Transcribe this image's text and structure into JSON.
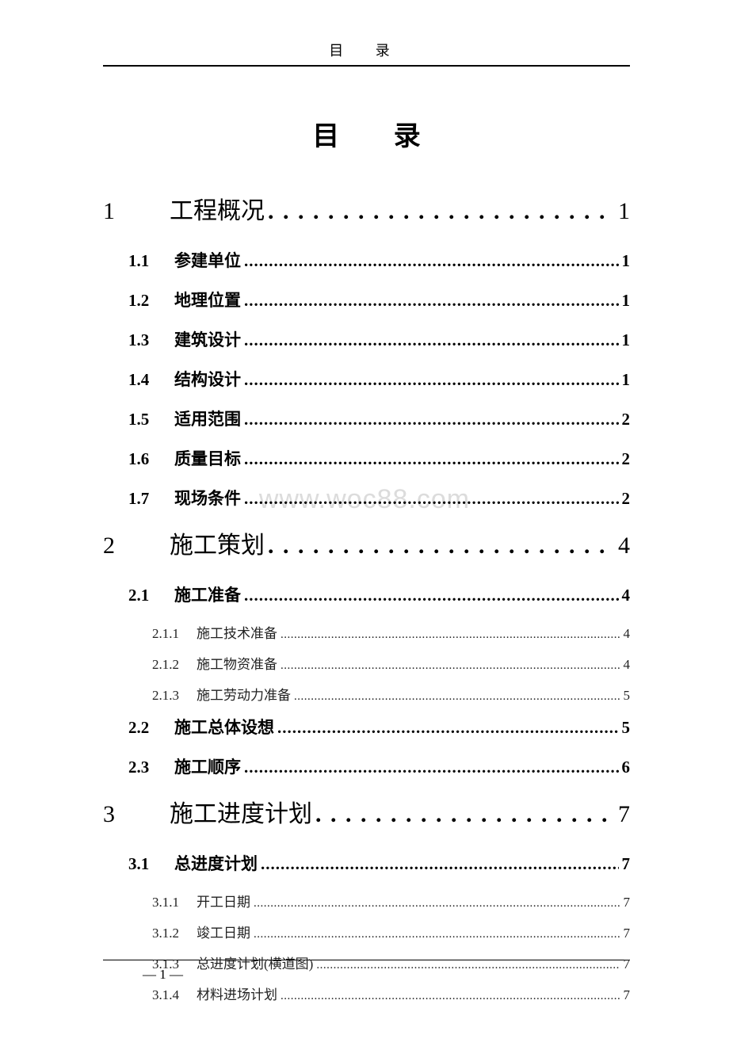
{
  "header": {
    "running_title": "目  录"
  },
  "title": "目  录",
  "watermark": "www.woc88.com",
  "page_number": "— 1 —",
  "colors": {
    "text": "#000000",
    "background": "#ffffff",
    "watermark": "#dcdcdc",
    "rule": "#000000"
  },
  "typography": {
    "body_font": "SimSun",
    "title_fontsize": 34,
    "level1_fontsize": 30,
    "level2_fontsize": 21,
    "level3_fontsize": 17,
    "header_fontsize": 18
  },
  "toc": [
    {
      "level": 1,
      "num": "1",
      "title": "工程概况",
      "page": "1"
    },
    {
      "level": 2,
      "num": "1.1",
      "title": "参建单位",
      "page": "1"
    },
    {
      "level": 2,
      "num": "1.2",
      "title": "地理位置",
      "page": "1"
    },
    {
      "level": 2,
      "num": "1.3",
      "title": "建筑设计",
      "page": "1"
    },
    {
      "level": 2,
      "num": "1.4",
      "title": "结构设计",
      "page": "1"
    },
    {
      "level": 2,
      "num": "1.5",
      "title": "适用范围",
      "page": "2"
    },
    {
      "level": 2,
      "num": "1.6",
      "title": "质量目标",
      "page": "2"
    },
    {
      "level": 2,
      "num": "1.7",
      "title": "现场条件",
      "page": "2"
    },
    {
      "level": 1,
      "num": "2",
      "title": "施工策划",
      "page": "4"
    },
    {
      "level": 2,
      "num": "2.1",
      "title": "施工准备",
      "page": "4"
    },
    {
      "level": 3,
      "num": "2.1.1",
      "title": "施工技术准备",
      "page": "4"
    },
    {
      "level": 3,
      "num": "2.1.2",
      "title": "施工物资准备",
      "page": "4"
    },
    {
      "level": 3,
      "num": "2.1.3",
      "title": "施工劳动力准备",
      "page": "5"
    },
    {
      "level": 2,
      "num": "2.2",
      "title": "施工总体设想",
      "page": "5"
    },
    {
      "level": 2,
      "num": "2.3",
      "title": "施工顺序",
      "page": "6"
    },
    {
      "level": 1,
      "num": "3",
      "title": "施工进度计划",
      "page": "7"
    },
    {
      "level": 2,
      "num": "3.1",
      "title": "总进度计划",
      "page": "7"
    },
    {
      "level": 3,
      "num": "3.1.1",
      "title": "开工日期",
      "page": "7"
    },
    {
      "level": 3,
      "num": "3.1.2",
      "title": "竣工日期",
      "page": "7"
    },
    {
      "level": 3,
      "num": "3.1.3",
      "title": "总进度计划(横道图)",
      "page": "7"
    },
    {
      "level": 3,
      "num": "3.1.4",
      "title": "材料进场计划",
      "page": "7"
    }
  ]
}
